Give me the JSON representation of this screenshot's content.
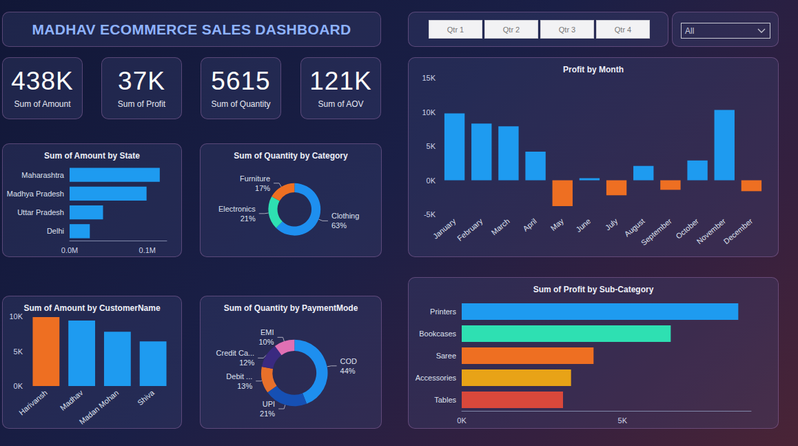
{
  "title": "MADHAV ECOMMERCE SALES DASHBOARD",
  "cards": [
    {
      "value": "438K",
      "label": "Sum of Amount"
    },
    {
      "value": "37K",
      "label": "Sum of Profit"
    },
    {
      "value": "5615",
      "label": "Sum of Quantity"
    },
    {
      "value": "121K",
      "label": "Sum of AOV"
    }
  ],
  "slicer": {
    "buttons": [
      "Qtr 1",
      "Qtr 2",
      "Qtr 3",
      "Qtr 4"
    ],
    "dropdown": "All"
  },
  "chart_data": [
    {
      "type": "bar",
      "title": "Sum of Amount by State",
      "orientation": "horizontal",
      "categories": [
        "Maharashtra",
        "Madhya Pradesh",
        "Uttar Pradesh",
        "Delhi"
      ],
      "values": [
        116000,
        99000,
        43000,
        26000
      ],
      "color": "#1E9BF0",
      "xlim": [
        0,
        125000
      ],
      "xticks": [
        {
          "value": 0,
          "label": "0.0M"
        },
        {
          "value": 100000,
          "label": "0.1M"
        }
      ],
      "grid": false
    },
    {
      "type": "pie",
      "title": "Sum of Quantity by Category",
      "categories": [
        "Clothing",
        "Electronics",
        "Furniture"
      ],
      "values": [
        63,
        21,
        17
      ],
      "value_labels": [
        "63%",
        "21%",
        "17%"
      ],
      "colors": [
        "#1E8FEF",
        "#2EE0B2",
        "#EE6F22"
      ]
    },
    {
      "type": "bar",
      "title": "Profit by Month",
      "categories": [
        "January",
        "February",
        "March",
        "April",
        "May",
        "June",
        "July",
        "August",
        "September",
        "October",
        "November",
        "December"
      ],
      "values": [
        9800,
        8300,
        7900,
        4200,
        -3800,
        300,
        -2200,
        2100,
        -1400,
        2900,
        10300,
        -1600
      ],
      "colors": [
        "#1E9BF0",
        "#1E9BF0",
        "#1E9BF0",
        "#1E9BF0",
        "#EE6F22",
        "#1E9BF0",
        "#EE6F22",
        "#1E9BF0",
        "#EE6F22",
        "#1E9BF0",
        "#1E9BF0",
        "#EE6F22"
      ],
      "ylim": [
        -5000,
        15000
      ],
      "yticks": [
        {
          "value": -5000,
          "label": "-5K"
        },
        {
          "value": 0,
          "label": "0K"
        },
        {
          "value": 5000,
          "label": "5K"
        },
        {
          "value": 10000,
          "label": "10K"
        },
        {
          "value": 15000,
          "label": "15K"
        }
      ],
      "grid": false
    },
    {
      "type": "bar",
      "title": "Sum of Amount by CustomerName",
      "categories": [
        "Harivansh",
        "Madhav",
        "Madan Mohan",
        "Shiva"
      ],
      "values": [
        9900,
        9400,
        7800,
        6400
      ],
      "colors": [
        "#EE6F22",
        "#1E9BF0",
        "#1E9BF0",
        "#1E9BF0"
      ],
      "ylim": [
        0,
        10000
      ],
      "yticks": [
        {
          "value": 0,
          "label": "0K"
        },
        {
          "value": 5000,
          "label": "5K"
        },
        {
          "value": 10000,
          "label": "10K"
        }
      ],
      "grid": false
    },
    {
      "type": "pie",
      "title": "Sum of Quantity by PaymentMode",
      "categories": [
        "COD",
        "UPI",
        "Debit ...",
        "Credit Ca...",
        "EMI"
      ],
      "values": [
        44,
        21,
        13,
        12,
        10
      ],
      "value_labels": [
        "44%",
        "21%",
        "13%",
        "12%",
        "10%"
      ],
      "colors": [
        "#1E8FEF",
        "#1650B4",
        "#E8702A",
        "#3A2A80",
        "#E070B4"
      ]
    },
    {
      "type": "bar",
      "title": "Sum of Profit by Sub-Category",
      "orientation": "horizontal",
      "categories": [
        "Printers",
        "Bookcases",
        "Saree",
        "Accessories",
        "Tables"
      ],
      "values": [
        8600,
        6500,
        4100,
        3400,
        3150
      ],
      "colors": [
        "#1E9BF0",
        "#2EE0B2",
        "#EE6F22",
        "#E8A317",
        "#D9483B"
      ],
      "xlim": [
        0,
        9000
      ],
      "xticks": [
        {
          "value": 0,
          "label": "0K"
        },
        {
          "value": 5000,
          "label": "5K"
        }
      ],
      "grid": false
    }
  ]
}
